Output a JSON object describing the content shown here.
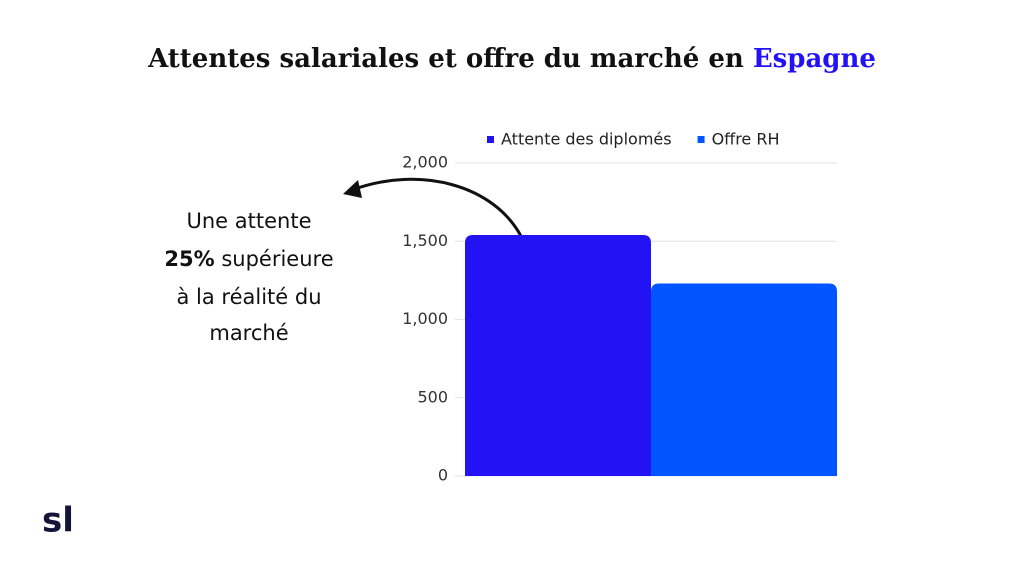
{
  "chart_data": {
    "type": "bar",
    "title": "Attentes salariales et offre du marché en",
    "title_highlight": "Espagne",
    "categories": [
      null
    ],
    "series": [
      {
        "name": "Attente des diplomés",
        "color": "#2212f4",
        "values": [
          1540
        ]
      },
      {
        "name": "Offre RH",
        "color": "#0055ff",
        "values": [
          1230
        ]
      }
    ],
    "ylim": [
      0,
      2000
    ],
    "yticks": [
      0,
      500,
      {
        "value": 1000,
        "label": "1,000"
      },
      {
        "value": 1500,
        "label": "1,500"
      },
      {
        "value": 2000,
        "label": "2,000"
      }
    ],
    "grid": true,
    "legend": "top",
    "annotation": {
      "line1": "Une attente",
      "bold": "25%",
      "line2": "supérieure",
      "line3": "à la réalité du",
      "line4": "marché"
    },
    "logo": "sl"
  }
}
